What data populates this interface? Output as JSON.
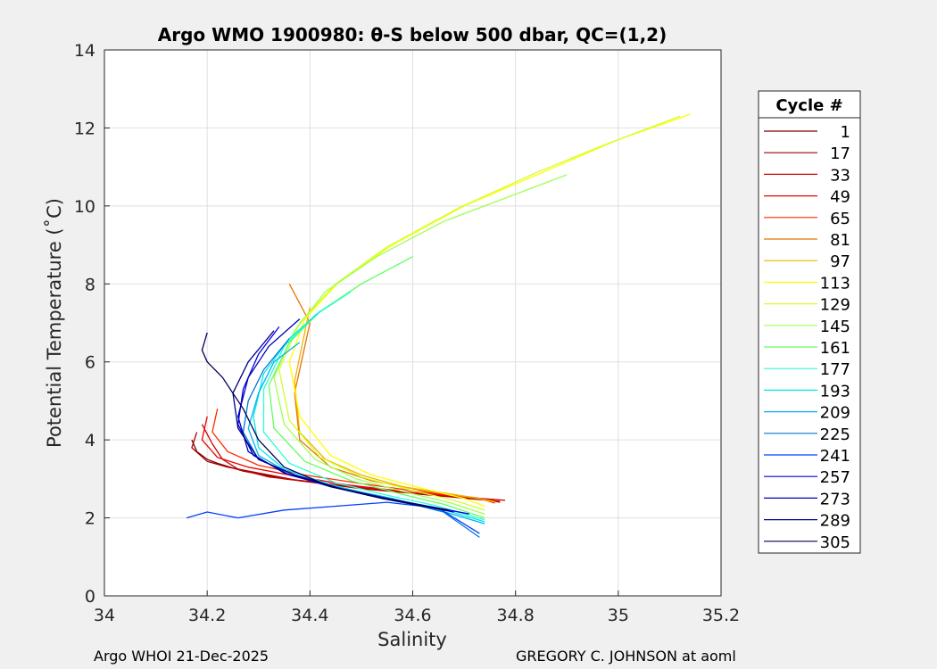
{
  "chart_data": {
    "type": "line",
    "title": "Argo WMO 1900980: θ-S below 500 dbar,  QC=(1,2)",
    "xlabel": "Salinity",
    "ylabel": "Potential Temperature (˚C)",
    "xlim": [
      34,
      35.2
    ],
    "ylim": [
      0,
      14
    ],
    "xticks": [
      34,
      34.2,
      34.4,
      34.6,
      34.8,
      35,
      35.2
    ],
    "xtick_labels": [
      "34",
      "34.2",
      "34.4",
      "34.6",
      "34.8",
      "35",
      "35.2"
    ],
    "yticks": [
      0,
      2,
      4,
      6,
      8,
      10,
      12,
      14
    ],
    "ytick_labels": [
      "0",
      "2",
      "4",
      "6",
      "8",
      "10",
      "12",
      "14"
    ],
    "grid": true,
    "legend": {
      "title": "Cycle #",
      "placement": "outside-right",
      "entries": [
        {
          "label": "1",
          "color": "#7f0000"
        },
        {
          "label": "17",
          "color": "#a30000"
        },
        {
          "label": "33",
          "color": "#c80000"
        },
        {
          "label": "49",
          "color": "#ec0000"
        },
        {
          "label": "65",
          "color": "#ff2a00"
        },
        {
          "label": "81",
          "color": "#e87400"
        },
        {
          "label": "97",
          "color": "#f0b400"
        },
        {
          "label": "113",
          "color": "#ffff00"
        },
        {
          "label": "129",
          "color": "#d2ff2a"
        },
        {
          "label": "145",
          "color": "#a0ff55"
        },
        {
          "label": "161",
          "color": "#60ff60"
        },
        {
          "label": "177",
          "color": "#2affd2"
        },
        {
          "label": "193",
          "color": "#00e8e8"
        },
        {
          "label": "209",
          "color": "#00b4f0"
        },
        {
          "label": "225",
          "color": "#0078d8"
        },
        {
          "label": "241",
          "color": "#0040ff"
        },
        {
          "label": "257",
          "color": "#0000ec"
        },
        {
          "label": "273",
          "color": "#0000b0"
        },
        {
          "label": "289",
          "color": "#000088"
        },
        {
          "label": "305",
          "color": "#00005a"
        }
      ]
    },
    "series": [
      {
        "color": "#7f0000",
        "x": [
          34.17,
          34.18,
          34.2,
          34.22,
          34.27,
          34.35,
          34.48,
          34.62,
          34.76
        ],
        "y": [
          4.0,
          3.7,
          3.5,
          3.4,
          3.2,
          3.0,
          2.8,
          2.6,
          2.45
        ]
      },
      {
        "color": "#a30000",
        "x": [
          34.18,
          34.17,
          34.2,
          34.24,
          34.3,
          34.38,
          34.5,
          34.64,
          34.77
        ],
        "y": [
          4.2,
          3.8,
          3.45,
          3.3,
          3.15,
          2.95,
          2.75,
          2.58,
          2.42
        ]
      },
      {
        "color": "#c80000",
        "x": [
          34.19,
          34.21,
          34.23,
          34.26,
          34.32,
          34.42,
          34.55,
          34.68,
          34.78
        ],
        "y": [
          4.4,
          3.9,
          3.5,
          3.25,
          3.05,
          2.9,
          2.7,
          2.55,
          2.45
        ]
      },
      {
        "color": "#ec0000",
        "x": [
          34.2,
          34.19,
          34.22,
          34.28,
          34.36,
          34.47,
          34.6,
          34.72,
          34.77
        ],
        "y": [
          4.6,
          4.0,
          3.55,
          3.3,
          3.1,
          2.85,
          2.65,
          2.52,
          2.4
        ]
      },
      {
        "color": "#ff2a00",
        "x": [
          34.22,
          34.21,
          34.24,
          34.3,
          34.39,
          34.5,
          34.62,
          34.73,
          34.76
        ],
        "y": [
          4.8,
          4.2,
          3.7,
          3.35,
          3.1,
          2.88,
          2.66,
          2.5,
          2.38
        ]
      },
      {
        "color": "#e87400",
        "x": [
          34.36,
          34.4,
          34.37,
          34.38,
          34.44,
          34.52,
          34.62,
          34.72,
          34.76
        ],
        "y": [
          8.0,
          7.0,
          5.2,
          4.0,
          3.3,
          2.95,
          2.7,
          2.52,
          2.4
        ]
      },
      {
        "color": "#f0b400",
        "x": [
          34.4,
          34.37,
          34.38,
          34.43,
          34.5,
          34.58,
          34.68,
          34.76
        ],
        "y": [
          7.4,
          5.5,
          4.2,
          3.5,
          3.1,
          2.8,
          2.6,
          2.42
        ]
      },
      {
        "color": "#ffff00",
        "x": [
          35.14,
          35.0,
          34.86,
          34.7,
          34.56,
          34.46,
          34.39,
          34.36,
          34.38,
          34.44,
          34.52,
          34.62,
          34.7,
          34.74
        ],
        "y": [
          12.35,
          11.7,
          10.9,
          10.0,
          9.0,
          8.1,
          7.1,
          6.0,
          4.6,
          3.6,
          3.1,
          2.75,
          2.5,
          2.3
        ]
      },
      {
        "color": "#d2ff2a",
        "x": [
          35.12,
          34.98,
          34.84,
          34.69,
          34.55,
          34.45,
          34.38,
          34.34,
          34.36,
          34.42,
          34.5,
          34.6,
          34.68,
          34.74
        ],
        "y": [
          12.3,
          11.6,
          10.85,
          9.95,
          8.95,
          8.0,
          7.0,
          5.8,
          4.5,
          3.55,
          3.05,
          2.7,
          2.45,
          2.2
        ]
      },
      {
        "color": "#a0ff55",
        "x": [
          34.9,
          34.78,
          34.66,
          34.53,
          34.43,
          34.37,
          34.33,
          34.35,
          34.41,
          34.49,
          34.59,
          34.67,
          34.74
        ],
        "y": [
          10.8,
          10.2,
          9.6,
          8.7,
          7.8,
          6.8,
          5.6,
          4.4,
          3.5,
          3.0,
          2.65,
          2.4,
          2.1
        ]
      },
      {
        "color": "#60ff60",
        "x": [
          34.6,
          34.5,
          34.42,
          34.36,
          34.32,
          34.33,
          34.39,
          34.48,
          34.58,
          34.66,
          34.74
        ],
        "y": [
          8.7,
          8.0,
          7.3,
          6.5,
          5.4,
          4.3,
          3.45,
          2.95,
          2.6,
          2.35,
          2.0
        ]
      },
      {
        "color": "#2affd2",
        "x": [
          34.48,
          34.41,
          34.35,
          34.31,
          34.31,
          34.36,
          34.45,
          34.56,
          34.65,
          34.74
        ],
        "y": [
          7.8,
          7.2,
          6.4,
          5.3,
          4.2,
          3.4,
          2.9,
          2.55,
          2.3,
          1.95
        ]
      },
      {
        "color": "#00e8e8",
        "x": [
          34.42,
          34.36,
          34.31,
          34.29,
          34.3,
          34.35,
          34.44,
          34.55,
          34.65,
          34.74
        ],
        "y": [
          7.3,
          6.6,
          5.7,
          4.6,
          3.8,
          3.25,
          2.85,
          2.5,
          2.25,
          1.9
        ]
      },
      {
        "color": "#00b4f0",
        "x": [
          34.38,
          34.33,
          34.3,
          34.28,
          34.3,
          34.36,
          34.45,
          34.56,
          34.65,
          34.74
        ],
        "y": [
          6.5,
          6.0,
          5.2,
          4.3,
          3.6,
          3.15,
          2.8,
          2.5,
          2.2,
          1.85
        ]
      },
      {
        "color": "#0078d8",
        "x": [
          34.36,
          34.31,
          34.28,
          34.27,
          34.3,
          34.37,
          34.46,
          34.57,
          34.66,
          34.73
        ],
        "y": [
          6.6,
          5.8,
          5.0,
          4.2,
          3.5,
          3.1,
          2.75,
          2.45,
          2.15,
          1.5
        ]
      },
      {
        "color": "#0040ff",
        "x": [
          34.16,
          34.2,
          34.26,
          34.35,
          34.45,
          34.55,
          34.65,
          34.73
        ],
        "y": [
          2.0,
          2.15,
          2.0,
          2.2,
          2.3,
          2.4,
          2.25,
          1.6
        ]
      },
      {
        "color": "#0000ec",
        "x": [
          34.34,
          34.3,
          34.27,
          34.26,
          34.29,
          34.36,
          34.46,
          34.56,
          34.65,
          34.71
        ],
        "y": [
          6.9,
          6.2,
          5.3,
          4.4,
          3.6,
          3.1,
          2.75,
          2.45,
          2.25,
          2.1
        ]
      },
      {
        "color": "#0000b0",
        "x": [
          34.38,
          34.32,
          34.28,
          34.26,
          34.28,
          34.35,
          34.44,
          34.54,
          34.62,
          34.68
        ],
        "y": [
          7.1,
          6.4,
          5.6,
          4.6,
          3.7,
          3.15,
          2.8,
          2.5,
          2.3,
          2.15
        ]
      },
      {
        "color": "#000088",
        "x": [
          34.33,
          34.28,
          34.25,
          34.26,
          34.3,
          34.37,
          34.46,
          34.55,
          34.63,
          34.67
        ],
        "y": [
          6.8,
          6.0,
          5.2,
          4.3,
          3.5,
          3.1,
          2.75,
          2.5,
          2.3,
          2.2
        ]
      },
      {
        "color": "#00005a",
        "x": [
          34.2,
          34.19,
          34.2,
          34.23,
          34.27,
          34.3,
          34.35,
          34.44,
          34.54,
          34.62,
          34.67
        ],
        "y": [
          6.75,
          6.3,
          6.0,
          5.6,
          4.8,
          4.0,
          3.3,
          2.8,
          2.5,
          2.3,
          2.2
        ]
      }
    ]
  },
  "footer": {
    "left": "Argo WHOI 21-Dec-2025",
    "right": "GREGORY C. JOHNSON at aoml"
  }
}
